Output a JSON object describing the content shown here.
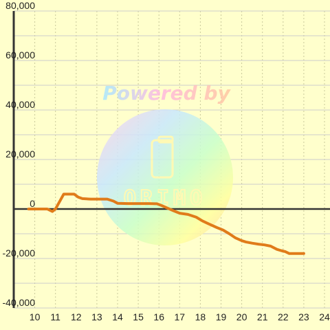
{
  "chart_data": {
    "type": "line",
    "title": "",
    "xlabel": "",
    "ylabel": "",
    "xlim": [
      9.7,
      24.3
    ],
    "ylim": [
      -40000,
      80000
    ],
    "x_ticks": [
      10,
      11,
      12,
      13,
      14,
      15,
      16,
      17,
      18,
      19,
      20,
      21,
      22,
      23,
      24
    ],
    "y_ticks": [
      -40000,
      -20000,
      0,
      20000,
      40000,
      60000,
      80000
    ],
    "x_tick_labels": [
      "10",
      "11",
      "12",
      "13",
      "14",
      "15",
      "16",
      "17",
      "18",
      "19",
      "20",
      "21",
      "22",
      "23",
      "24"
    ],
    "y_tick_labels": [
      "-40,000",
      "-20,000",
      "0",
      "20,000",
      "40,000",
      "60,000",
      "80,000"
    ],
    "grid": true,
    "line_color": "#e07b1a",
    "background": "#ffffcc",
    "series": [
      {
        "points": [
          [
            9.7,
            0
          ],
          [
            10.2,
            0
          ],
          [
            10.6,
            0
          ],
          [
            10.85,
            -1000
          ],
          [
            11.0,
            0
          ],
          [
            11.2,
            3000
          ],
          [
            11.4,
            6000
          ],
          [
            11.9,
            6000
          ],
          [
            12.1,
            4800
          ],
          [
            12.3,
            4200
          ],
          [
            12.7,
            4000
          ],
          [
            13.5,
            4000
          ],
          [
            13.8,
            3200
          ],
          [
            14.0,
            2300
          ],
          [
            14.5,
            2200
          ],
          [
            15.0,
            2200
          ],
          [
            15.5,
            2200
          ],
          [
            15.9,
            2100
          ],
          [
            16.1,
            1500
          ],
          [
            16.4,
            400
          ],
          [
            16.7,
            -700
          ],
          [
            17.0,
            -1700
          ],
          [
            17.4,
            -2200
          ],
          [
            17.8,
            -3300
          ],
          [
            18.1,
            -4800
          ],
          [
            18.4,
            -6000
          ],
          [
            18.8,
            -7500
          ],
          [
            19.1,
            -8500
          ],
          [
            19.4,
            -10000
          ],
          [
            19.7,
            -11700
          ],
          [
            20.0,
            -12800
          ],
          [
            20.2,
            -13300
          ],
          [
            20.5,
            -13800
          ],
          [
            20.8,
            -14200
          ],
          [
            21.1,
            -14500
          ],
          [
            21.4,
            -15000
          ],
          [
            21.7,
            -16300
          ],
          [
            21.9,
            -16800
          ],
          [
            22.1,
            -17200
          ],
          [
            22.3,
            -18000
          ],
          [
            22.6,
            -18000
          ],
          [
            23.0,
            -18000
          ]
        ]
      }
    ]
  },
  "watermark": {
    "powered_text": "Powered by",
    "logo_text": "ORIMO"
  }
}
